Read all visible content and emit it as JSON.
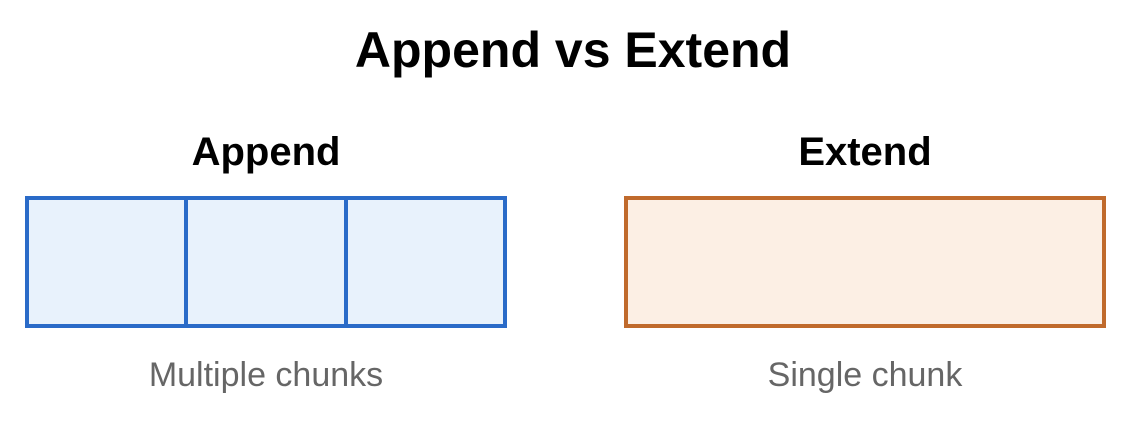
{
  "title": "Append vs Extend",
  "append": {
    "heading": "Append",
    "caption": "Multiple chunks",
    "chunk_count": 3,
    "border_color": "#2a6bc8",
    "fill_color": "#e8f2fc"
  },
  "extend": {
    "heading": "Extend",
    "caption": "Single chunk",
    "chunk_count": 1,
    "border_color": "#c06a2c",
    "fill_color": "#fcefe4"
  }
}
